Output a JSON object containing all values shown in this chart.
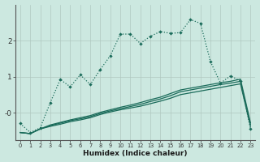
{
  "xlabel": "Humidex (Indice chaleur)",
  "bg_color": "#cce8e0",
  "grid_color": "#b0c8c0",
  "line_color": "#1a6b5a",
  "x_data": [
    0,
    1,
    2,
    3,
    4,
    5,
    6,
    7,
    8,
    9,
    10,
    11,
    12,
    13,
    14,
    15,
    16,
    17,
    18,
    19,
    20,
    21,
    22,
    23
  ],
  "line1": [
    -0.3,
    -0.55,
    -0.42,
    0.28,
    0.92,
    0.72,
    1.05,
    0.78,
    1.2,
    1.58,
    2.18,
    2.18,
    1.92,
    2.12,
    2.25,
    2.2,
    2.22,
    2.58,
    2.48,
    1.42,
    0.82,
    1.02,
    0.88,
    -0.45
  ],
  "line2": [
    -0.55,
    -0.58,
    -0.45,
    -0.38,
    -0.32,
    -0.25,
    -0.2,
    -0.14,
    -0.05,
    0.02,
    0.08,
    0.13,
    0.18,
    0.25,
    0.32,
    0.4,
    0.5,
    0.55,
    0.6,
    0.65,
    0.7,
    0.75,
    0.8,
    -0.38
  ],
  "line3": [
    -0.55,
    -0.58,
    -0.45,
    -0.36,
    -0.29,
    -0.22,
    -0.17,
    -0.11,
    -0.02,
    0.05,
    0.11,
    0.17,
    0.23,
    0.31,
    0.38,
    0.47,
    0.58,
    0.63,
    0.68,
    0.73,
    0.78,
    0.82,
    0.87,
    -0.33
  ],
  "line4": [
    -0.55,
    -0.58,
    -0.45,
    -0.34,
    -0.27,
    -0.2,
    -0.14,
    -0.08,
    0.01,
    0.08,
    0.15,
    0.21,
    0.28,
    0.36,
    0.43,
    0.53,
    0.63,
    0.68,
    0.73,
    0.78,
    0.83,
    0.87,
    0.93,
    -0.28
  ],
  "ylim": [
    -0.75,
    3.0
  ],
  "yticks": [
    0,
    1,
    2
  ],
  "ytick_labels": [
    "-0",
    "1",
    "2"
  ],
  "xlim": [
    -0.5,
    23.5
  ]
}
